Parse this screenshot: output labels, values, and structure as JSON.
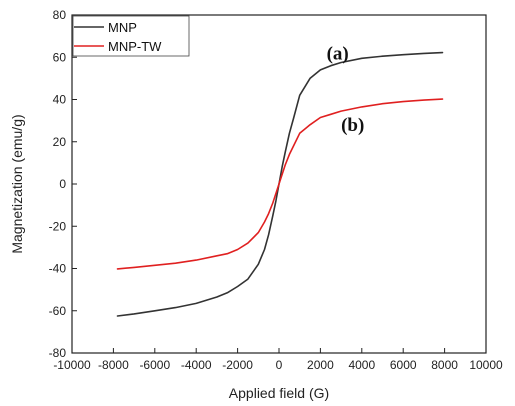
{
  "chart_data": {
    "type": "line",
    "title": "",
    "xlabel": "Applied field (G)",
    "ylabel": "Magnetization (emu/g)",
    "xlim": [
      -10000,
      10000
    ],
    "ylim": [
      -80,
      80
    ],
    "x_ticks": [
      -10000,
      -8000,
      -6000,
      -4000,
      -2000,
      0,
      2000,
      4000,
      6000,
      8000,
      10000
    ],
    "y_ticks": [
      -80,
      -60,
      -40,
      -20,
      0,
      20,
      40,
      60,
      80
    ],
    "x_tick_labels": [
      "-10000",
      "-8000",
      "-6000",
      "-4000",
      "-2000",
      "0",
      "2000",
      "4000",
      "6000",
      "8000",
      "10000"
    ],
    "y_tick_labels": [
      "-80",
      "-60",
      "-40",
      "-20",
      "0",
      "20",
      "40",
      "60",
      "80"
    ],
    "grid": false,
    "legend_position": "top-left",
    "annotations": [
      {
        "text": "(a)",
        "x": 2300,
        "y": 59
      },
      {
        "text": "(b)",
        "x": 3000,
        "y": 25
      }
    ],
    "series": [
      {
        "name": "MNP",
        "color": "#333333",
        "x": [
          -7800,
          -7000,
          -6000,
          -5000,
          -4000,
          -3000,
          -2500,
          -2000,
          -1500,
          -1000,
          -700,
          -500,
          -300,
          -150,
          0,
          150,
          300,
          500,
          700,
          1000,
          1500,
          2000,
          2500,
          3000,
          4000,
          5000,
          6000,
          7000,
          7900
        ],
        "y": [
          -62.5,
          -61.5,
          -60,
          -58.5,
          -56.5,
          -53.5,
          -51.5,
          -48.5,
          -45,
          -38,
          -31,
          -24,
          -15,
          -8,
          0,
          8,
          15,
          24,
          31,
          42,
          50,
          54,
          56,
          57.5,
          59.5,
          60.5,
          61.2,
          61.8,
          62.2
        ]
      },
      {
        "name": "MNP-TW",
        "color": "#e02020",
        "x": [
          -7800,
          -7000,
          -6000,
          -5000,
          -4000,
          -3000,
          -2500,
          -2000,
          -1500,
          -1000,
          -700,
          -500,
          -300,
          -150,
          0,
          150,
          300,
          500,
          700,
          1000,
          1500,
          2000,
          2500,
          3000,
          4000,
          5000,
          6000,
          7000,
          7900
        ],
        "y": [
          -40.2,
          -39.5,
          -38.5,
          -37.5,
          -36,
          -34,
          -33,
          -31,
          -28,
          -23,
          -18,
          -14,
          -9,
          -4.5,
          0,
          4.5,
          9,
          14,
          18,
          24,
          28,
          31.5,
          33,
          34.5,
          36.5,
          38,
          39,
          39.7,
          40.2
        ]
      }
    ]
  }
}
